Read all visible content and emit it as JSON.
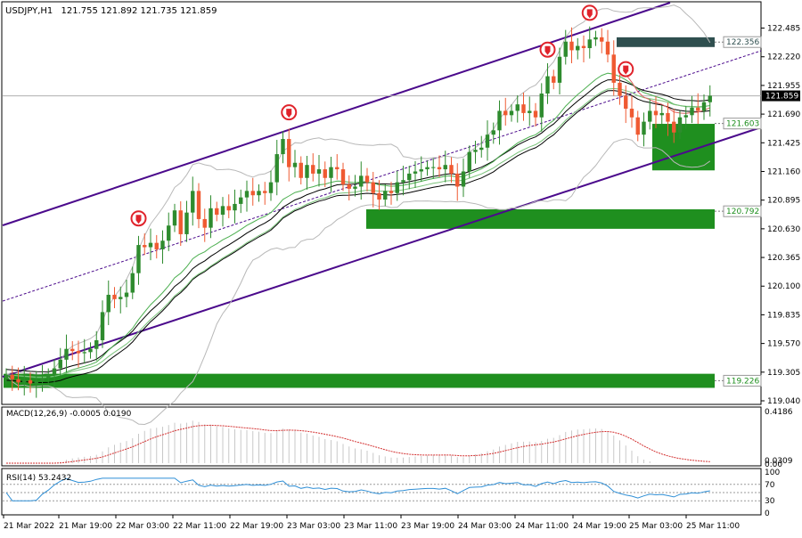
{
  "header": {
    "symbol": "USDJPY,H1",
    "ohlc": "121.755 121.892 121.735 121.859"
  },
  "colors": {
    "bull": "#2e8b2e",
    "bear": "#ef5a32",
    "channel": "#4b0a8c",
    "zone": "#1f8f1f",
    "resistance_zone": "#2f4f4f",
    "marker": "#e0232b",
    "macd_signal": "#d32f2f",
    "macd_hist": "#c8c8c8",
    "rsi_line": "#2f8fd6",
    "price_line": "#b0b0b0"
  },
  "chart_data": [
    {
      "type": "candlestick",
      "title": "USDJPY,H1",
      "ylim": [
        119.04,
        122.58
      ],
      "yticks": [
        "122.485",
        "122.220",
        "121.955",
        "121.690",
        "121.425",
        "121.160",
        "120.895",
        "120.630",
        "120.365",
        "120.100",
        "119.835",
        "119.570",
        "119.305",
        "119.040"
      ],
      "xticks": [
        "21 Mar 2022",
        "21 Mar 19:00",
        "22 Mar 03:00",
        "22 Mar 11:00",
        "22 Mar 19:00",
        "23 Mar 03:00",
        "23 Mar 11:00",
        "23 Mar 19:00",
        "24 Mar 03:00",
        "24 Mar 11:00",
        "24 Mar 19:00",
        "25 Mar 03:00",
        "25 Mar 11:00"
      ],
      "current_price": "121.859",
      "level_labels": [
        "122.356",
        "121.603",
        "120.792",
        "119.226"
      ],
      "close": [
        119.28,
        119.24,
        119.21,
        119.23,
        119.2,
        119.22,
        119.25,
        119.28,
        119.34,
        119.42,
        119.52,
        119.5,
        119.48,
        119.49,
        119.52,
        119.6,
        119.86,
        120.02,
        119.98,
        120.0,
        120.04,
        120.22,
        120.48,
        120.46,
        120.5,
        120.44,
        120.52,
        120.66,
        120.8,
        120.58,
        120.78,
        120.98,
        120.72,
        120.64,
        120.82,
        120.76,
        120.84,
        120.8,
        120.86,
        120.92,
        120.98,
        120.94,
        120.98,
        120.96,
        121.06,
        121.32,
        121.46,
        121.2,
        121.24,
        121.1,
        121.22,
        121.14,
        121.18,
        121.1,
        121.2,
        121.18,
        121.04,
        121.0,
        121.02,
        121.12,
        121.06,
        120.96,
        120.9,
        120.98,
        120.96,
        121.06,
        121.08,
        121.14,
        121.16,
        121.18,
        121.2,
        121.2,
        121.18,
        121.22,
        121.14,
        121.02,
        121.16,
        121.34,
        121.36,
        121.38,
        121.5,
        121.54,
        121.72,
        121.68,
        121.72,
        121.78,
        121.7,
        121.72,
        121.66,
        121.88,
        122.04,
        121.98,
        122.22,
        122.36,
        122.28,
        122.32,
        122.3,
        122.38,
        122.4,
        122.36,
        122.24,
        121.98,
        121.86,
        121.74,
        121.66,
        121.5,
        121.62,
        121.72,
        121.68,
        121.7,
        121.62,
        121.52,
        121.66,
        121.68,
        121.75,
        121.72,
        121.8,
        121.86
      ],
      "signal_markers": [
        22,
        47,
        90,
        97,
        103
      ],
      "rsi_levels": [
        70,
        50,
        30
      ]
    },
    {
      "type": "bar",
      "title": "MACD(12,26,9) -0.0005 0.0190",
      "ylim": [
        0.0,
        0.4186
      ],
      "yticks": [
        "0.4186",
        "0.0309",
        "0.00"
      ]
    },
    {
      "type": "line",
      "title": "RSI(14) 53.2432",
      "ylim": [
        0,
        100
      ],
      "yticks": [
        "100",
        "70",
        "30",
        "0"
      ]
    }
  ]
}
